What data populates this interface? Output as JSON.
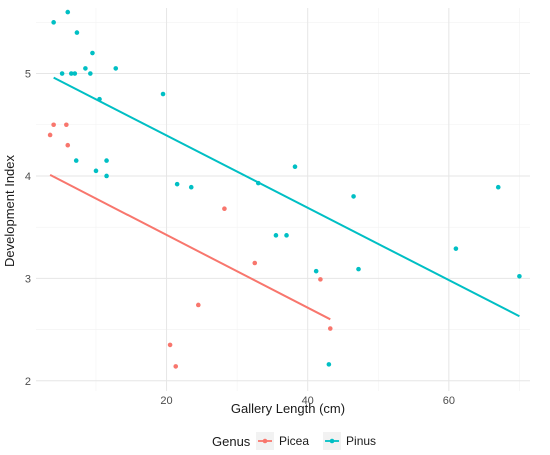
{
  "chart_data": {
    "type": "scatter",
    "xlabel": "Gallery Length (cm)",
    "ylabel": "Development Index",
    "xlim": [
      1.5,
      71.5
    ],
    "ylim": [
      1.9,
      5.64
    ],
    "x_ticks": [
      20,
      40,
      60
    ],
    "y_ticks": [
      2,
      3,
      4,
      5
    ],
    "grid": true,
    "legend_position": "bottom",
    "legend_title": "Genus",
    "series": [
      {
        "name": "Picea",
        "color": "#F8766D",
        "points": [
          {
            "x": 3.5,
            "y": 4.4
          },
          {
            "x": 4.0,
            "y": 4.5
          },
          {
            "x": 5.8,
            "y": 4.5
          },
          {
            "x": 6.0,
            "y": 4.3
          },
          {
            "x": 20.5,
            "y": 2.35
          },
          {
            "x": 21.3,
            "y": 2.14
          },
          {
            "x": 24.5,
            "y": 2.74
          },
          {
            "x": 28.2,
            "y": 3.68
          },
          {
            "x": 32.5,
            "y": 3.15
          },
          {
            "x": 41.8,
            "y": 2.99
          },
          {
            "x": 43.2,
            "y": 2.51
          }
        ],
        "trend": {
          "x": [
            3.5,
            43.2
          ],
          "y": [
            4.01,
            2.6
          ]
        }
      },
      {
        "name": "Pinus",
        "color": "#00BFC4",
        "points": [
          {
            "x": 4.0,
            "y": 5.5
          },
          {
            "x": 6.0,
            "y": 5.6
          },
          {
            "x": 5.2,
            "y": 5.0
          },
          {
            "x": 6.5,
            "y": 5.0
          },
          {
            "x": 7.0,
            "y": 5.0
          },
          {
            "x": 7.3,
            "y": 5.4
          },
          {
            "x": 8.5,
            "y": 5.05
          },
          {
            "x": 9.2,
            "y": 5.0
          },
          {
            "x": 9.5,
            "y": 5.2
          },
          {
            "x": 10.5,
            "y": 4.75
          },
          {
            "x": 12.8,
            "y": 5.05
          },
          {
            "x": 7.2,
            "y": 4.15
          },
          {
            "x": 10.0,
            "y": 4.05
          },
          {
            "x": 11.5,
            "y": 4.15
          },
          {
            "x": 11.5,
            "y": 4.0
          },
          {
            "x": 19.5,
            "y": 4.8
          },
          {
            "x": 21.5,
            "y": 3.92
          },
          {
            "x": 23.5,
            "y": 3.89
          },
          {
            "x": 33.0,
            "y": 3.93
          },
          {
            "x": 35.5,
            "y": 3.42
          },
          {
            "x": 37.0,
            "y": 3.42
          },
          {
            "x": 38.2,
            "y": 4.09
          },
          {
            "x": 41.2,
            "y": 3.07
          },
          {
            "x": 43.0,
            "y": 2.16
          },
          {
            "x": 46.5,
            "y": 3.8
          },
          {
            "x": 47.2,
            "y": 3.09
          },
          {
            "x": 61.0,
            "y": 3.29
          },
          {
            "x": 67.0,
            "y": 3.89
          },
          {
            "x": 70.0,
            "y": 3.02
          }
        ],
        "trend": {
          "x": [
            4.0,
            70.0
          ],
          "y": [
            4.96,
            2.63
          ]
        }
      }
    ]
  }
}
